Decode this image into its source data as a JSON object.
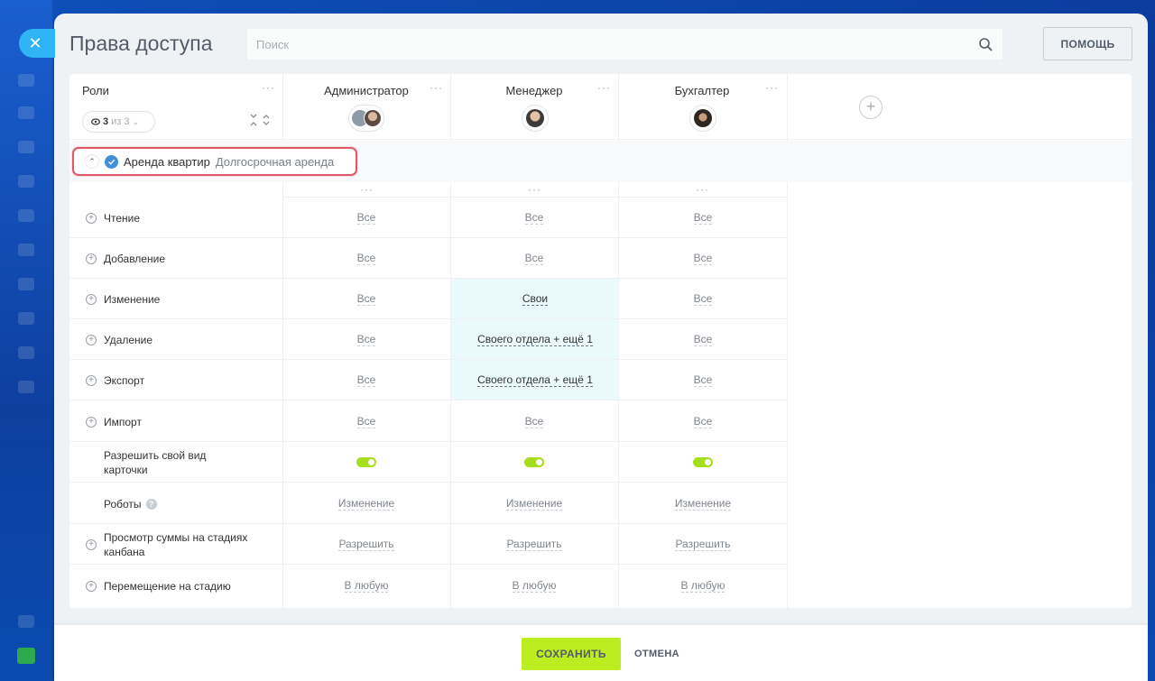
{
  "window": {
    "title": "Права доступа",
    "search_placeholder": "Поиск",
    "help_label": "ПОМОЩЬ"
  },
  "roles_column": {
    "title": "Роли",
    "visible_count": "3",
    "visible_of": "из 3"
  },
  "roles": [
    {
      "name": "Администратор"
    },
    {
      "name": "Менеджер"
    },
    {
      "name": "Бухгалтер"
    }
  ],
  "section": {
    "title": "Аренда квартир",
    "subtitle": "Долгосрочная аренда"
  },
  "rows": [
    {
      "label": "Чтение",
      "values": [
        "Все",
        "Все",
        "Все"
      ]
    },
    {
      "label": "Добавление",
      "values": [
        "Все",
        "Все",
        "Все"
      ]
    },
    {
      "label": "Изменение",
      "values": [
        "Все",
        "Свои",
        "Все"
      ]
    },
    {
      "label": "Удаление",
      "values": [
        "Все",
        "Своего отдела + ещё 1",
        "Все"
      ]
    },
    {
      "label": "Экспорт",
      "values": [
        "Все",
        "Своего отдела + ещё 1",
        "Все"
      ]
    },
    {
      "label": "Импорт",
      "values": [
        "Все",
        "Все",
        "Все"
      ]
    },
    {
      "label": "Разрешить свой вид карточки",
      "values": [
        "on",
        "on",
        "on"
      ]
    },
    {
      "label": "Роботы",
      "values": [
        "Изменение",
        "Изменение",
        "Изменение"
      ]
    },
    {
      "label": "Просмотр суммы на стадиях канбана",
      "values": [
        "Разрешить",
        "Разрешить",
        "Разрешить"
      ]
    },
    {
      "label": "Перемещение на стадию",
      "values": [
        "В любую",
        "В любую",
        "В любую"
      ]
    }
  ],
  "footer": {
    "save_label": "СОХРАНИТЬ",
    "cancel_label": "ОТМЕНА"
  },
  "colors": {
    "accent_green": "#bbed21",
    "highlight_cell": "#e9f9fc",
    "section_outline": "#e05a65",
    "close_button": "#2fb5f5"
  }
}
